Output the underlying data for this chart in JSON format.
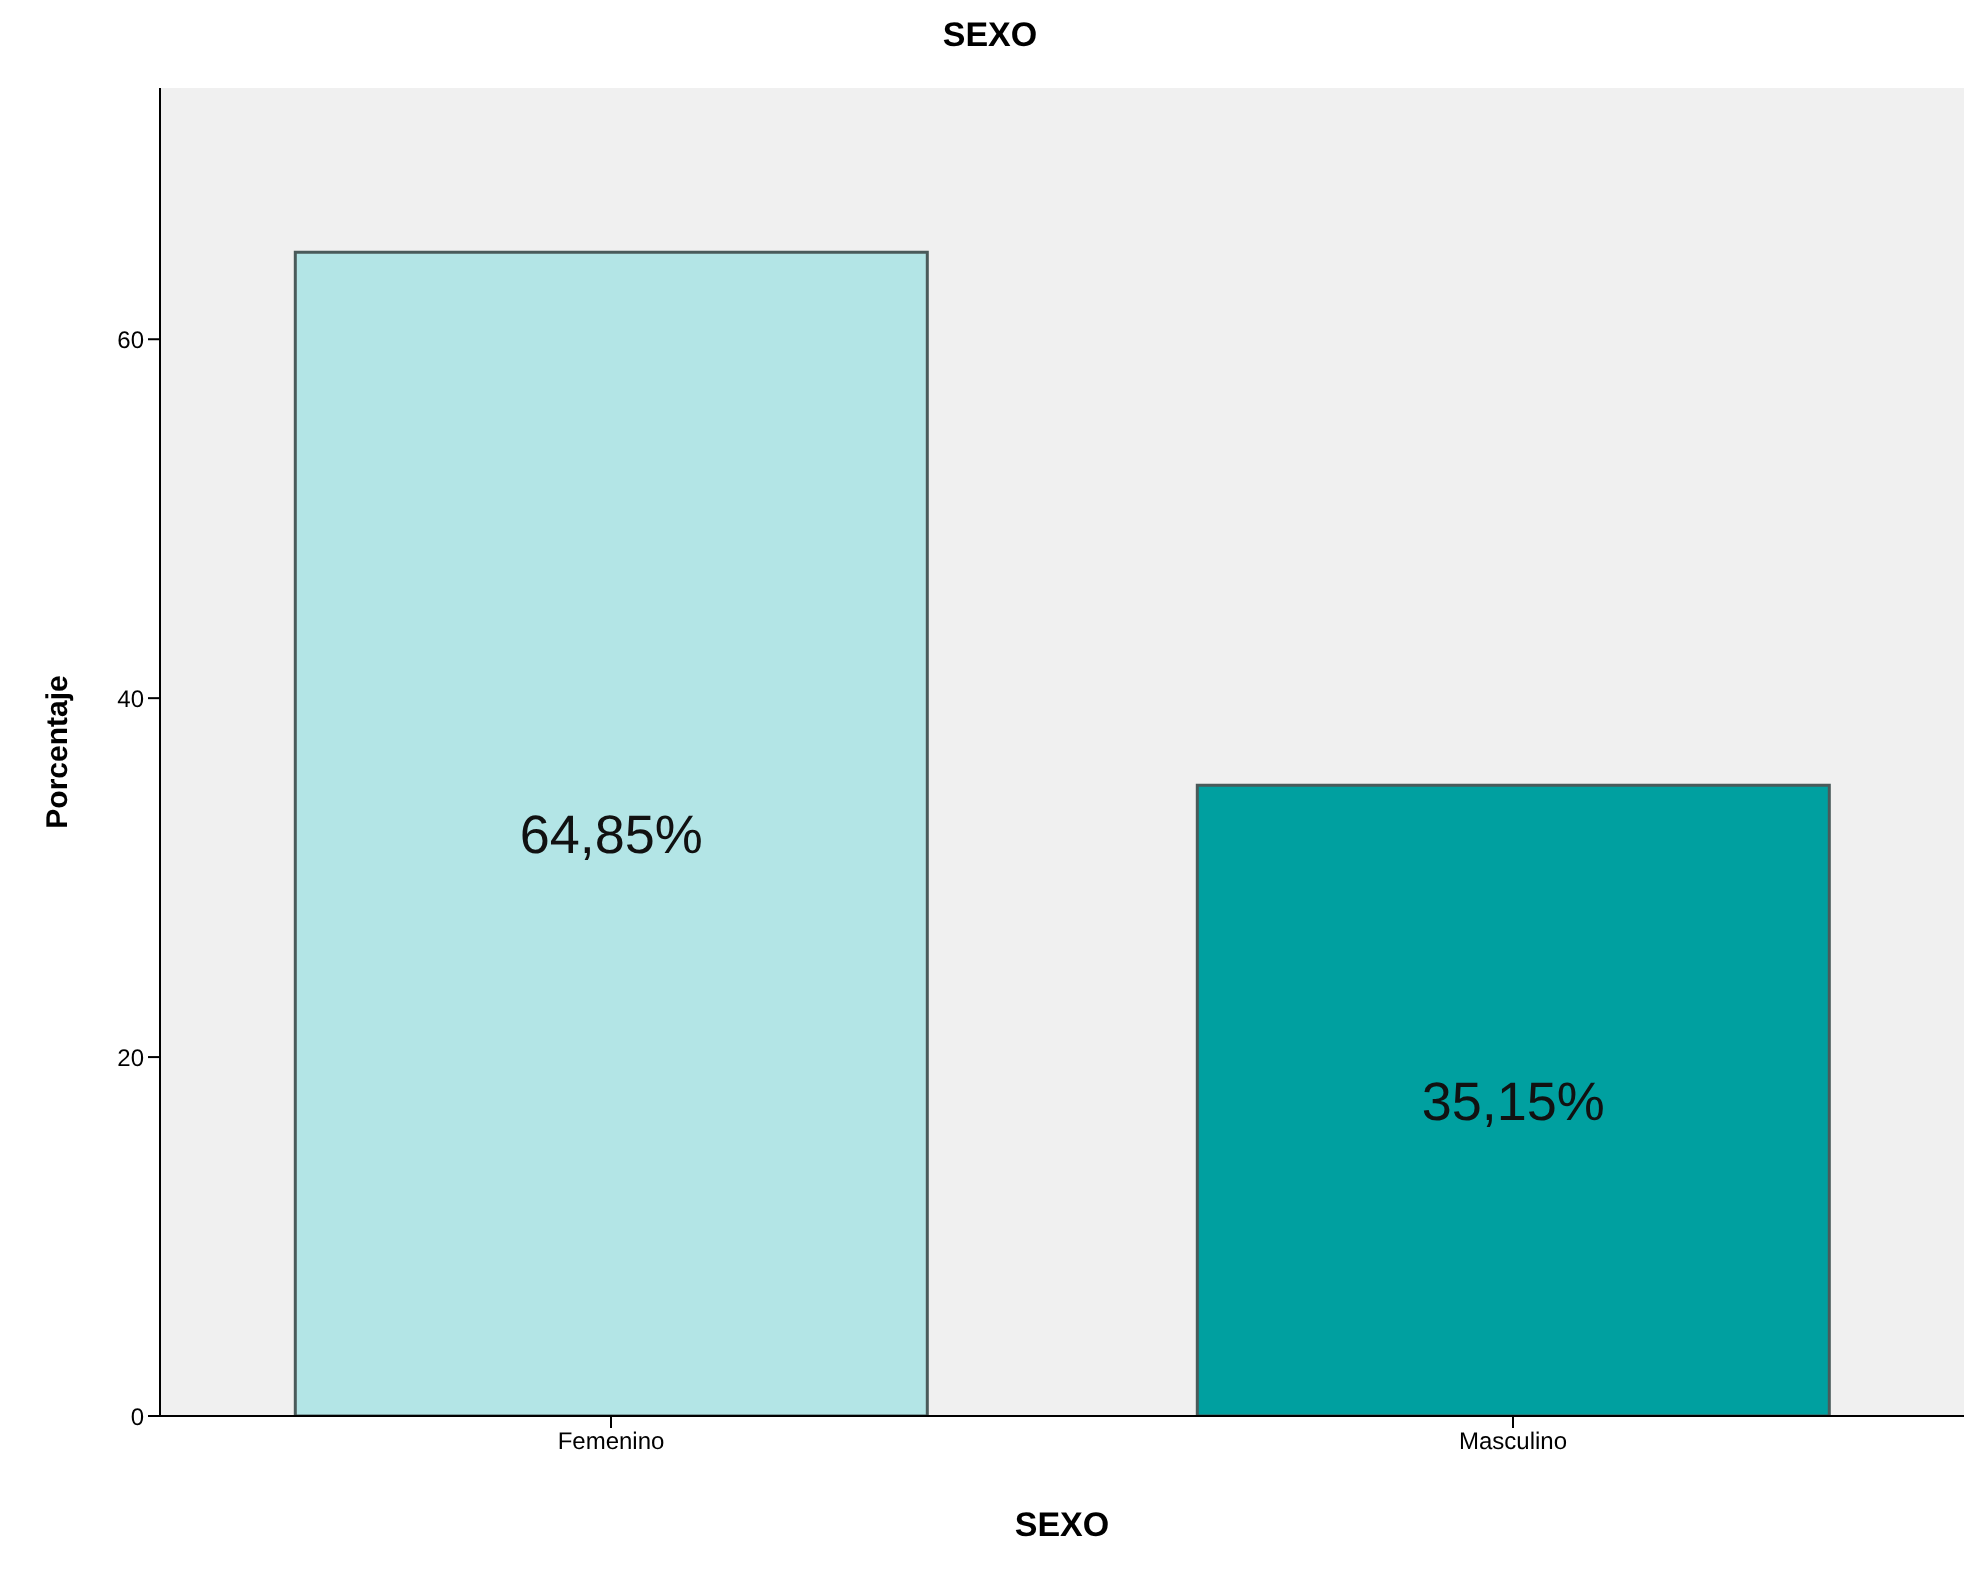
{
  "chart_data": {
    "type": "bar",
    "title": "SEXO",
    "xlabel": "SEXO",
    "ylabel": "Porcentaje",
    "categories": [
      "Femenino",
      "Masculino"
    ],
    "values": [
      64.85,
      35.15
    ],
    "colors": [
      "#b3e5e6",
      "#00a0a0"
    ],
    "value_labels": [
      "64,85%",
      "35,15%"
    ],
    "ylim": [
      0,
      74
    ],
    "yticks": [
      0,
      20,
      40,
      60
    ],
    "grid": false
  }
}
